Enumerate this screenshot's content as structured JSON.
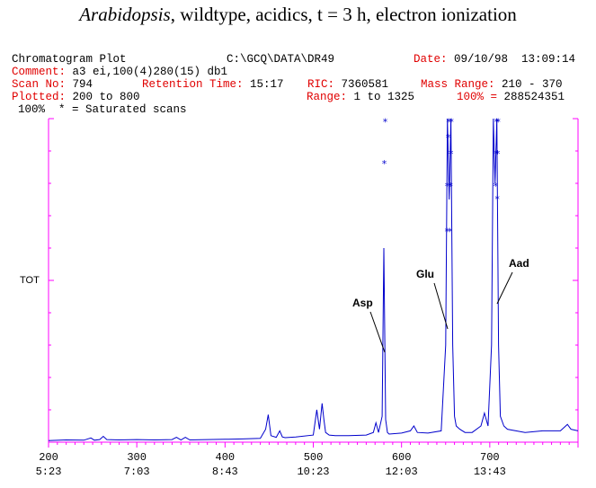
{
  "title": {
    "italic": "Arabidopsis",
    "rest": ", wildtype, acidics, t = 3 h, electron ionization"
  },
  "header": {
    "plot_name": "Chromatogram Plot",
    "path": "C:\\GCQ\\DATA\\DR49",
    "date_label": "Date:",
    "date_value": "09/10/98  13:09:14",
    "comment_label": "Comment:",
    "comment_value": "a3 ei,100(4)280(15) db1",
    "scan_label": "Scan No:",
    "scan_value": "794",
    "rt_label": "Retention Time:",
    "rt_value": "15:17",
    "ric_label": "RIC:",
    "ric_value": "7360581",
    "mass_label": "Mass Range:",
    "mass_value": "210 - 370",
    "plotted_label": "Plotted:",
    "plotted_value": "200 to 800",
    "range_label": "Range:",
    "range_value": "1 to 1325",
    "pct_label": "100% =",
    "pct_value": "288524351",
    "saturated_note": "100%  * = Saturated scans"
  },
  "colors": {
    "axis": "#ff00ff",
    "trace": "#0000cc",
    "label_red": "#e00000",
    "text": "#000000"
  },
  "chart_data": {
    "type": "line",
    "ylabel": "TOT",
    "xlim": [
      200,
      800
    ],
    "ylim": [
      0,
      100
    ],
    "xticks": [
      200,
      300,
      400,
      500,
      600,
      700
    ],
    "xtick_time_labels": [
      "5:23",
      "7:03",
      "8:43",
      "10:23",
      "12:03",
      "13:43"
    ],
    "series": [
      {
        "x": [
          200,
          220,
          240,
          248,
          252,
          258,
          262,
          266,
          280,
          300,
          320,
          340,
          345,
          350,
          355,
          360,
          380,
          400,
          420,
          440,
          446,
          449,
          452,
          458,
          462,
          465,
          468,
          480,
          500,
          504,
          507,
          510,
          512,
          514,
          518,
          525,
          540,
          560,
          568,
          571,
          574,
          578,
          580,
          582,
          584,
          586,
          600,
          610,
          614,
          618,
          630,
          645,
          650,
          652,
          654,
          656,
          658,
          660,
          662,
          666,
          672,
          680,
          690,
          694,
          698,
          702,
          704,
          706,
          708,
          710,
          712,
          716,
          720,
          740,
          760,
          780,
          788,
          792,
          800
        ],
        "y": [
          0.5,
          0.7,
          0.6,
          1.3,
          0.6,
          0.8,
          1.8,
          0.8,
          0.7,
          0.8,
          0.7,
          0.8,
          1.5,
          0.7,
          1.5,
          0.7,
          0.8,
          0.9,
          1.0,
          1.2,
          4.0,
          8.5,
          2.0,
          1.5,
          3.5,
          1.6,
          1.4,
          1.6,
          2.2,
          10.0,
          4.0,
          12.0,
          7.0,
          3.0,
          2.2,
          2.0,
          2.0,
          2.2,
          3.0,
          6.0,
          3.0,
          8.0,
          60.0,
          7.0,
          3.0,
          2.5,
          2.8,
          3.5,
          5.0,
          3.0,
          2.8,
          3.5,
          30.0,
          100.0,
          75.0,
          100.0,
          30.0,
          8.0,
          5.0,
          4.0,
          3.0,
          3.0,
          5.0,
          9.0,
          5.0,
          30.0,
          100.0,
          80.0,
          100.0,
          30.0,
          8.0,
          5.0,
          4.0,
          3.0,
          3.5,
          3.5,
          5.5,
          4.0,
          3.5
        ]
      }
    ],
    "saturated_markers": [
      {
        "x": 581.5,
        "y": 99.8
      },
      {
        "x": 580.5,
        "y": 87.0
      },
      {
        "x": 653.5,
        "y": 99.8
      },
      {
        "x": 652.8,
        "y": 95.0
      },
      {
        "x": 651.8,
        "y": 80.0
      },
      {
        "x": 651.5,
        "y": 66.0
      },
      {
        "x": 656.5,
        "y": 99.8
      },
      {
        "x": 656.0,
        "y": 90.0
      },
      {
        "x": 655.5,
        "y": 80.0
      },
      {
        "x": 655.0,
        "y": 66.0
      },
      {
        "x": 707.5,
        "y": 99.8
      },
      {
        "x": 707.0,
        "y": 90.0
      },
      {
        "x": 706.5,
        "y": 80.0
      },
      {
        "x": 709.5,
        "y": 99.8
      },
      {
        "x": 709.0,
        "y": 90.0
      },
      {
        "x": 708.5,
        "y": 76.0
      }
    ],
    "annotations": [
      {
        "text": "Asp",
        "x": 573,
        "y": 40
      },
      {
        "text": "Glu",
        "x": 644,
        "y": 48
      },
      {
        "text": "Aad",
        "x": 715,
        "y": 51
      }
    ]
  }
}
